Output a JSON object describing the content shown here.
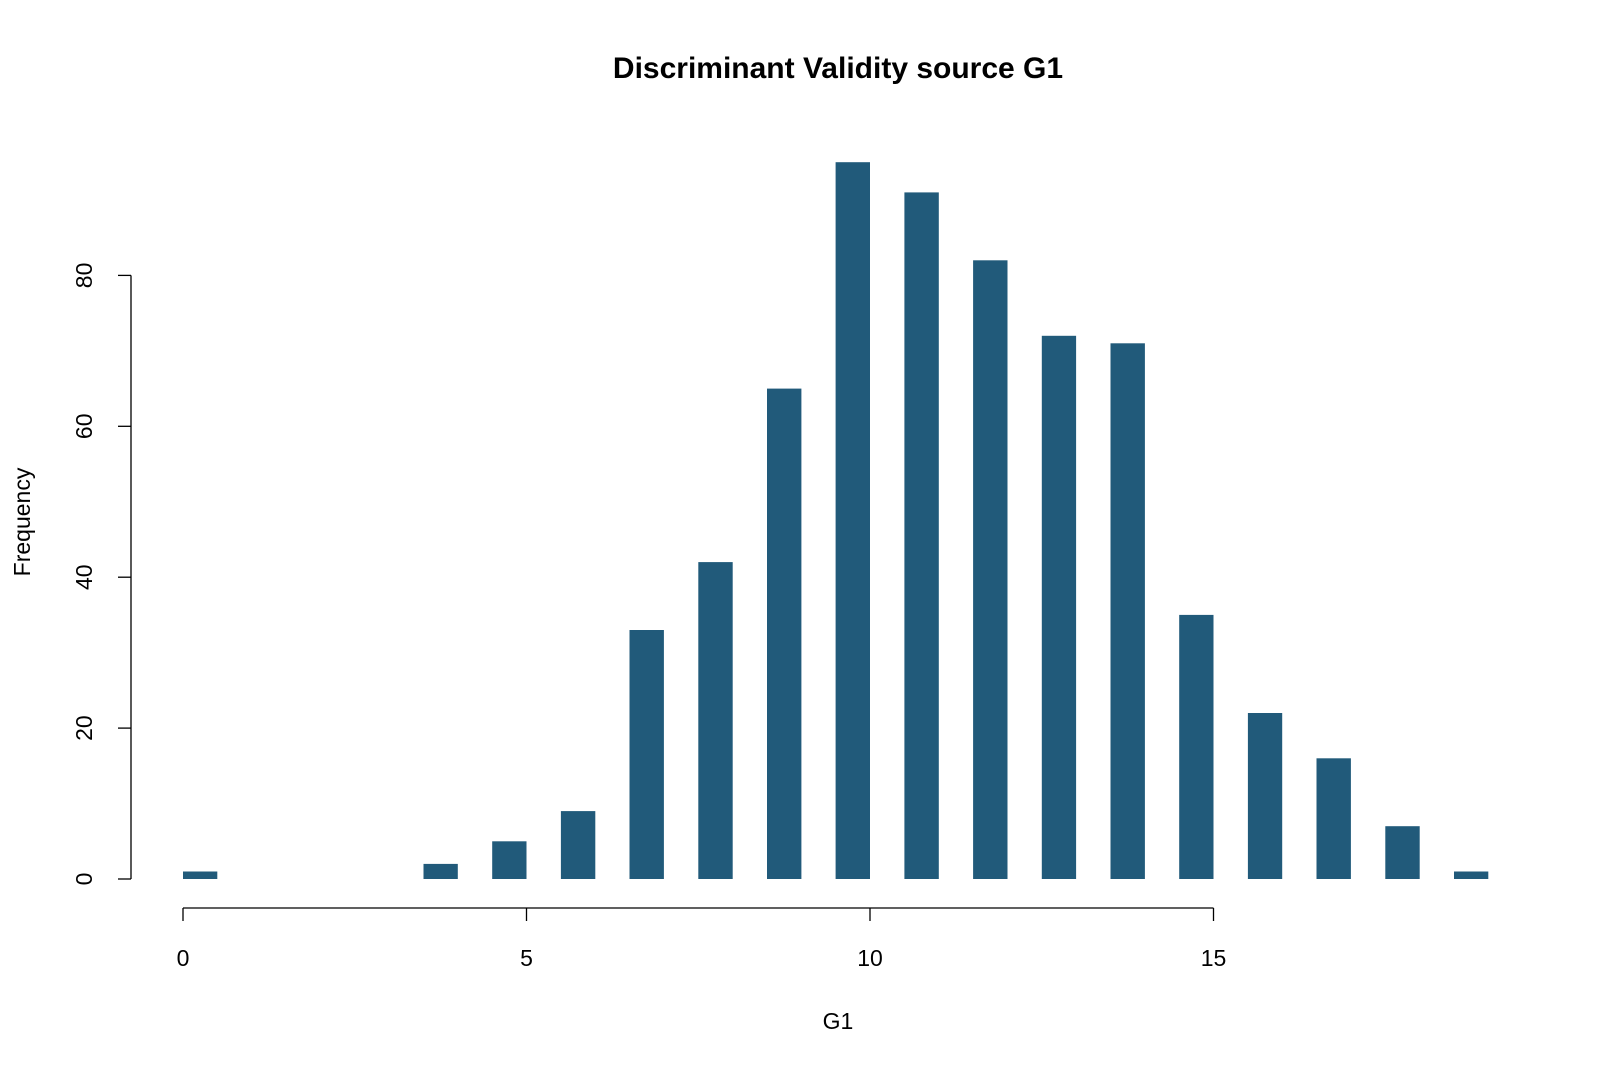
{
  "chart_data": {
    "type": "bar",
    "title": "Discriminant Validity source G1",
    "xlabel": "G1",
    "ylabel": "Frequency",
    "bar_color": "#215a7a",
    "x": [
      0,
      3.5,
      4.5,
      5.5,
      6.5,
      7.5,
      8.5,
      9.5,
      10.5,
      11.5,
      12.5,
      13.5,
      14.5,
      15.5,
      16.5,
      17.5,
      18.5
    ],
    "values": [
      1,
      2,
      5,
      9,
      33,
      42,
      65,
      95,
      91,
      82,
      72,
      71,
      35,
      22,
      16,
      7,
      1
    ],
    "bar_width": 0.5,
    "xlim": [
      0,
      19
    ],
    "ylim": [
      0,
      95
    ],
    "x_ticks": [
      0,
      5,
      10,
      15
    ],
    "x_tick_labels": [
      "0",
      "5",
      "10",
      "15"
    ],
    "y_ticks": [
      0,
      20,
      40,
      60,
      80
    ],
    "y_tick_labels": [
      "0",
      "20",
      "40",
      "60",
      "80"
    ],
    "grid": false,
    "legend": "none"
  }
}
